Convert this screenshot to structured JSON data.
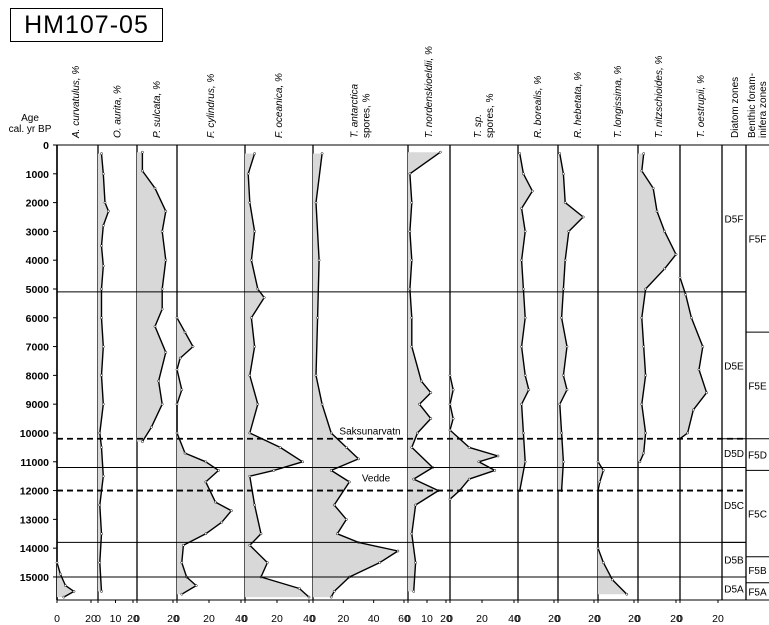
{
  "title": "HM107-05",
  "colors": {
    "fill": "#d8d8d8",
    "stroke": "#000000",
    "background": "#ffffff"
  },
  "chart_data": {
    "type": "area",
    "title": "HM107-05",
    "ylabel": "Age cal. yr BP",
    "ylim": [
      0,
      15800
    ],
    "y_ticks": [
      0,
      1000,
      2000,
      3000,
      4000,
      5000,
      6000,
      7000,
      8000,
      9000,
      10000,
      11000,
      12000,
      13000,
      14000,
      15000
    ],
    "grid": false,
    "orientation": "depth-profile (age increases downward)",
    "panels": [
      {
        "name": "A. curvatulus, %",
        "xlim": [
          0,
          20
        ],
        "x_ticks": [
          0,
          20
        ],
        "points": [
          [
            0,
            14500
          ],
          [
            2,
            14900
          ],
          [
            5,
            15300
          ],
          [
            10,
            15500
          ],
          [
            4,
            15700
          ]
        ]
      },
      {
        "name": "O. aurita, %",
        "xlim": [
          0,
          20
        ],
        "x_ticks": [
          0,
          10,
          20
        ],
        "points": [
          [
            2,
            300
          ],
          [
            3,
            1000
          ],
          [
            4,
            2000
          ],
          [
            6,
            2300
          ],
          [
            3,
            2800
          ],
          [
            2,
            3500
          ],
          [
            3,
            4200
          ],
          [
            2,
            5000
          ],
          [
            2,
            6000
          ],
          [
            3,
            7000
          ],
          [
            2,
            8000
          ],
          [
            3,
            9000
          ],
          [
            1,
            10000
          ],
          [
            2,
            10500
          ],
          [
            3,
            11500
          ],
          [
            1,
            12500
          ],
          [
            2,
            13500
          ],
          [
            1,
            14500
          ],
          [
            2,
            15500
          ]
        ]
      },
      {
        "name": "P. sulcata, %",
        "xlim": [
          0,
          20
        ],
        "x_ticks": [
          0,
          20
        ],
        "points": [
          [
            3,
            250
          ],
          [
            3,
            900
          ],
          [
            10,
            1500
          ],
          [
            16,
            2300
          ],
          [
            14,
            3000
          ],
          [
            16,
            4000
          ],
          [
            14,
            5000
          ],
          [
            14,
            5700
          ],
          [
            10,
            6300
          ],
          [
            16,
            7200
          ],
          [
            12,
            8200
          ],
          [
            14,
            9000
          ],
          [
            8,
            9800
          ],
          [
            3,
            10300
          ]
        ]
      },
      {
        "name": "F. cylindrus, %",
        "xlim": [
          0,
          40
        ],
        "x_ticks": [
          0,
          20,
          40
        ],
        "points": [
          [
            0,
            6000
          ],
          [
            5,
            6500
          ],
          [
            10,
            7000
          ],
          [
            2,
            7400
          ],
          [
            0,
            7800
          ],
          [
            3,
            8500
          ],
          [
            0,
            9000
          ],
          [
            0,
            10000
          ],
          [
            5,
            10700
          ],
          [
            18,
            11000
          ],
          [
            26,
            11300
          ],
          [
            18,
            11700
          ],
          [
            24,
            12400
          ],
          [
            34,
            12700
          ],
          [
            28,
            13100
          ],
          [
            18,
            13500
          ],
          [
            4,
            13900
          ],
          [
            3,
            14500
          ],
          [
            6,
            15000
          ],
          [
            12,
            15300
          ],
          [
            3,
            15600
          ]
        ]
      },
      {
        "name": "F. oceanica, %",
        "xlim": [
          0,
          40
        ],
        "x_ticks": [
          0,
          20,
          40
        ],
        "points": [
          [
            6,
            300
          ],
          [
            2,
            1000
          ],
          [
            3,
            2000
          ],
          [
            6,
            3000
          ],
          [
            4,
            4000
          ],
          [
            8,
            5000
          ],
          [
            12,
            5300
          ],
          [
            4,
            6000
          ],
          [
            6,
            7000
          ],
          [
            3,
            8000
          ],
          [
            8,
            9000
          ],
          [
            3,
            10000
          ],
          [
            22,
            10500
          ],
          [
            36,
            11000
          ],
          [
            18,
            11300
          ],
          [
            3,
            11500
          ],
          [
            6,
            12500
          ],
          [
            10,
            13500
          ],
          [
            3,
            13900
          ],
          [
            14,
            14500
          ],
          [
            10,
            15000
          ],
          [
            34,
            15400
          ],
          [
            40,
            15700
          ]
        ]
      },
      {
        "name": "T. antarctica spores, %",
        "xlim": [
          0,
          60
        ],
        "x_ticks": [
          0,
          20,
          40,
          60
        ],
        "points": [
          [
            6,
            300
          ],
          [
            2,
            2000
          ],
          [
            4,
            4000
          ],
          [
            3,
            6000
          ],
          [
            2,
            8000
          ],
          [
            6,
            9000
          ],
          [
            12,
            10000
          ],
          [
            22,
            10500
          ],
          [
            30,
            10900
          ],
          [
            12,
            11300
          ],
          [
            24,
            11700
          ],
          [
            14,
            12500
          ],
          [
            22,
            13000
          ],
          [
            16,
            13500
          ],
          [
            30,
            13800
          ],
          [
            56,
            14100
          ],
          [
            44,
            14500
          ],
          [
            24,
            15000
          ],
          [
            14,
            15500
          ],
          [
            12,
            15700
          ]
        ]
      },
      {
        "name": "T. nordenskioeldii, %",
        "xlim": [
          0,
          20
        ],
        "x_ticks": [
          0,
          10,
          20
        ],
        "points": [
          [
            17,
            250
          ],
          [
            1,
            1000
          ],
          [
            2,
            2000
          ],
          [
            1,
            3000
          ],
          [
            2,
            4000
          ],
          [
            1,
            5000
          ],
          [
            2,
            6000
          ],
          [
            2,
            7000
          ],
          [
            7,
            8200
          ],
          [
            12,
            8600
          ],
          [
            6,
            9000
          ],
          [
            12,
            9500
          ],
          [
            5,
            10000
          ],
          [
            2,
            10500
          ],
          [
            13,
            11200
          ],
          [
            3,
            11600
          ],
          [
            16,
            12000
          ],
          [
            4,
            12500
          ],
          [
            2,
            13500
          ],
          [
            4,
            14500
          ],
          [
            3,
            15500
          ]
        ]
      },
      {
        "name": "T. sp. spores, %",
        "xlim": [
          0,
          40
        ],
        "x_ticks": [
          0,
          20,
          40
        ],
        "points": [
          [
            0,
            8000
          ],
          [
            2,
            8500
          ],
          [
            0,
            9000
          ],
          [
            2,
            9500
          ],
          [
            0,
            9900
          ],
          [
            12,
            10500
          ],
          [
            30,
            10800
          ],
          [
            18,
            11000
          ],
          [
            28,
            11300
          ],
          [
            12,
            11600
          ],
          [
            6,
            12000
          ],
          [
            0,
            12300
          ]
        ]
      },
      {
        "name": "R. borealis, %",
        "xlim": [
          0,
          20
        ],
        "x_ticks": [
          0,
          20
        ],
        "points": [
          [
            1,
            300
          ],
          [
            3,
            1000
          ],
          [
            8,
            1600
          ],
          [
            2,
            2200
          ],
          [
            4,
            3000
          ],
          [
            2,
            4000
          ],
          [
            3,
            5000
          ],
          [
            4,
            6000
          ],
          [
            2,
            7000
          ],
          [
            4,
            8000
          ],
          [
            6,
            8500
          ],
          [
            2,
            9000
          ],
          [
            3,
            10000
          ],
          [
            4,
            11000
          ],
          [
            1,
            12000
          ]
        ]
      },
      {
        "name": "R. hebetata, %",
        "xlim": [
          0,
          20
        ],
        "x_ticks": [
          0,
          20
        ],
        "points": [
          [
            1,
            300
          ],
          [
            3,
            1000
          ],
          [
            4,
            2000
          ],
          [
            14,
            2500
          ],
          [
            6,
            3000
          ],
          [
            4,
            4000
          ],
          [
            3,
            5000
          ],
          [
            2,
            6000
          ],
          [
            5,
            7000
          ],
          [
            3,
            8000
          ],
          [
            5,
            8500
          ],
          [
            1,
            9000
          ],
          [
            2,
            10000
          ],
          [
            3,
            11000
          ],
          [
            2,
            12000
          ]
        ]
      },
      {
        "name": "T. longissima, %",
        "xlim": [
          0,
          20
        ],
        "x_ticks": [
          0,
          20
        ],
        "points": [
          [
            0,
            11000
          ],
          [
            3,
            11300
          ],
          [
            1,
            11700
          ],
          [
            0,
            12000
          ],
          [
            0,
            14000
          ],
          [
            3,
            14500
          ],
          [
            8,
            15100
          ],
          [
            16,
            15600
          ]
        ]
      },
      {
        "name": "T. nitzschioides, %",
        "xlim": [
          0,
          20
        ],
        "x_ticks": [
          0,
          20
        ],
        "points": [
          [
            3,
            300
          ],
          [
            2,
            900
          ],
          [
            8,
            1500
          ],
          [
            10,
            2300
          ],
          [
            14,
            3000
          ],
          [
            20,
            3800
          ],
          [
            14,
            4300
          ],
          [
            4,
            5000
          ],
          [
            2,
            6000
          ],
          [
            3,
            7000
          ],
          [
            4,
            8000
          ],
          [
            2,
            9000
          ],
          [
            4,
            10000
          ],
          [
            3,
            10700
          ],
          [
            1,
            11000
          ]
        ]
      },
      {
        "name": "T. oestrupii, %",
        "xlim": [
          0,
          20
        ],
        "x_ticks": [
          0,
          20
        ],
        "points": [
          [
            0,
            4600
          ],
          [
            3,
            5200
          ],
          [
            6,
            6000
          ],
          [
            12,
            7000
          ],
          [
            10,
            7800
          ],
          [
            14,
            8600
          ],
          [
            7,
            9200
          ],
          [
            4,
            10000
          ],
          [
            0,
            10200
          ]
        ]
      }
    ],
    "zones": {
      "diatom": {
        "header": "Diatom zones",
        "items": [
          {
            "label": "D5F",
            "top": 0,
            "bottom": 5100
          },
          {
            "label": "D5E",
            "top": 5100,
            "bottom": 10200
          },
          {
            "label": "D5D",
            "top": 10200,
            "bottom": 11200
          },
          {
            "label": "D5C",
            "top": 11200,
            "bottom": 13800
          },
          {
            "label": "D5B",
            "top": 13800,
            "bottom": 15000
          },
          {
            "label": "D5A",
            "top": 15000,
            "bottom": 15800
          }
        ]
      },
      "foram": {
        "header": "Benthic foram-inifera zones",
        "items": [
          {
            "label": "F5F",
            "top": 0,
            "bottom": 6500
          },
          {
            "label": "F5E",
            "top": 6500,
            "bottom": 10200
          },
          {
            "label": "F5D",
            "top": 10200,
            "bottom": 11300
          },
          {
            "label": "F5C",
            "top": 11300,
            "bottom": 14300
          },
          {
            "label": "F5B",
            "top": 14300,
            "bottom": 15200
          },
          {
            "label": "F5A",
            "top": 15200,
            "bottom": 15800
          }
        ]
      }
    },
    "boundaries": {
      "solid": [
        5100,
        11200,
        13800,
        15000
      ],
      "dashed": [
        10200,
        12000
      ]
    },
    "annotations": [
      {
        "text": "Saksunarvatn",
        "age": 10200
      },
      {
        "text": "Vedde",
        "age": 12000
      }
    ]
  }
}
